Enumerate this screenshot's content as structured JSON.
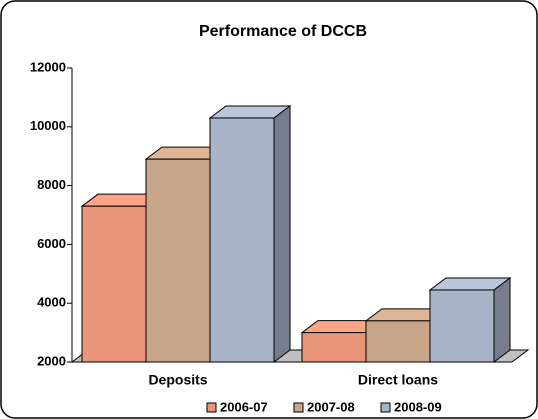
{
  "chart_data": {
    "type": "bar3d",
    "title": "Performance of DCCB",
    "categories": [
      "Deposits",
      "Direct loans"
    ],
    "series": [
      {
        "name": "2006-07",
        "color": "#e8957a",
        "values": [
          7300,
          3000
        ]
      },
      {
        "name": "2007-08",
        "color": "#c9a58a",
        "values": [
          8900,
          3400
        ]
      },
      {
        "name": "2008-09",
        "color": "#a9b4c8",
        "values": [
          10300,
          4450
        ]
      }
    ],
    "ylim": [
      2000,
      12000
    ],
    "yticks": [
      2000,
      4000,
      6000,
      8000,
      10000,
      12000
    ]
  }
}
